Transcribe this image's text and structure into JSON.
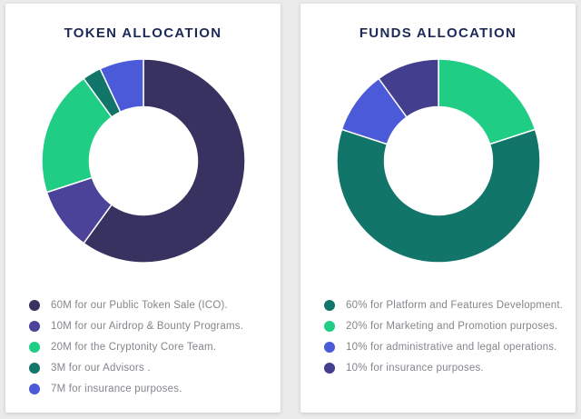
{
  "theme": {
    "page_background": "#ebebec",
    "card_background": "#ffffff",
    "title_color": "#1d2a57",
    "legend_text_color": "#85858c"
  },
  "chart_data": [
    {
      "type": "pie",
      "donut": true,
      "title": "TOKEN ALLOCATION",
      "legend_position": "bottom",
      "start_angle": 0,
      "draw_order": [
        0,
        1,
        2,
        3,
        4
      ],
      "slices": [
        {
          "label": "60M for our Public Token Sale (ICO).",
          "value": 60,
          "color": "#373260"
        },
        {
          "label": "10M for our Airdrop & Bounty Programs.",
          "value": 10,
          "color": "#4b4399"
        },
        {
          "label": "20M for the Cryptonity Core Team.",
          "value": 20,
          "color": "#1fcd85"
        },
        {
          "label": "3M for our Advisors .",
          "value": 3,
          "color": "#11756a"
        },
        {
          "label": "7M for insurance purposes.",
          "value": 7,
          "color": "#4a5ad8"
        }
      ]
    },
    {
      "type": "pie",
      "donut": true,
      "title": "FUNDS ALLOCATION",
      "legend_position": "bottom",
      "start_angle": 0,
      "draw_order": [
        1,
        0,
        2,
        3
      ],
      "slices": [
        {
          "label": "60% for Platform and Features Development.",
          "value": 60,
          "color": "#11756a"
        },
        {
          "label": "20% for Marketing and Promotion purposes.",
          "value": 20,
          "color": "#1fcd85"
        },
        {
          "label": "10% for administrative and legal operations.",
          "value": 10,
          "color": "#4a5ad8"
        },
        {
          "label": "10% for insurance purposes.",
          "value": 10,
          "color": "#443e8f"
        }
      ]
    }
  ]
}
